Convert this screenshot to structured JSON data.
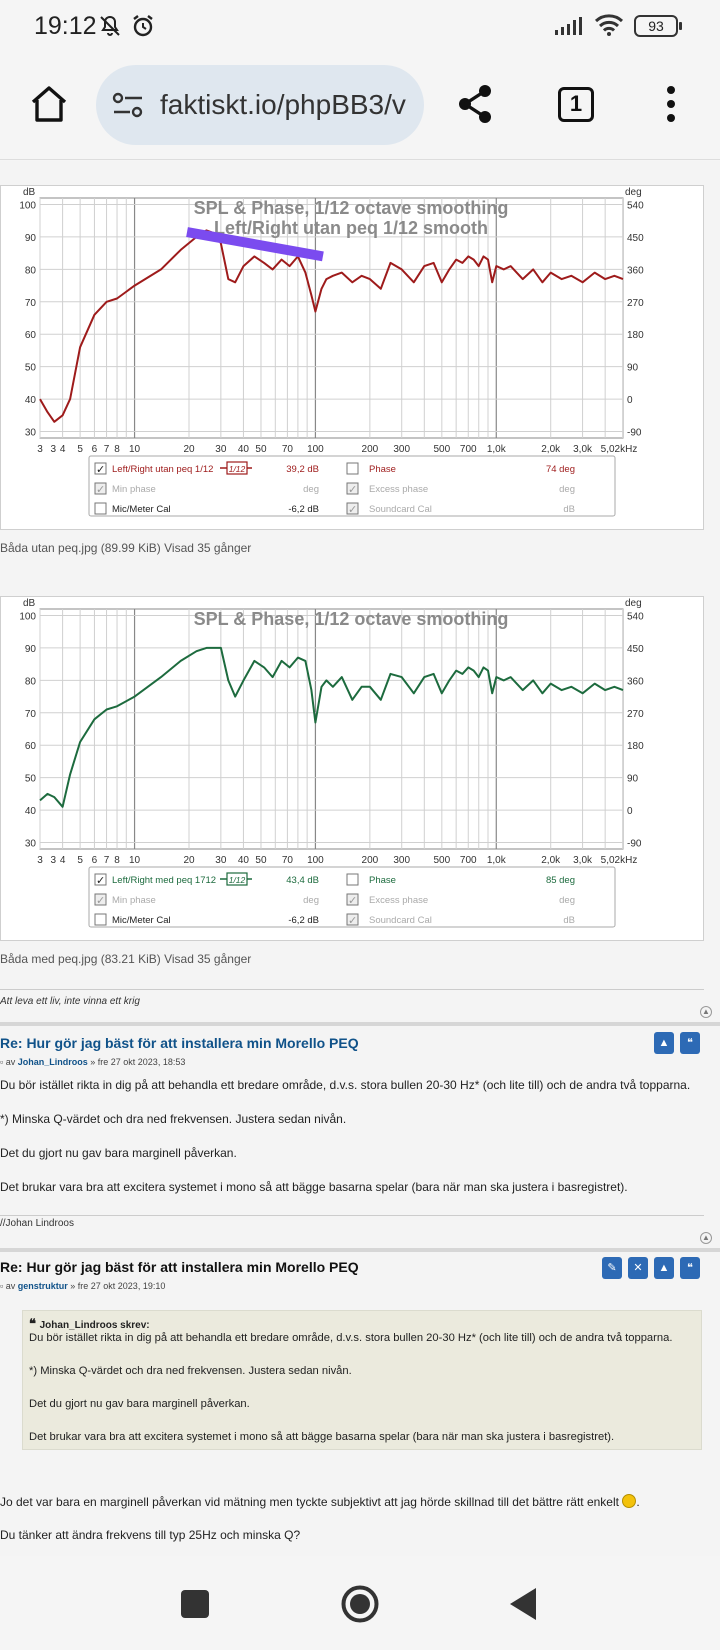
{
  "status": {
    "time": "19:12",
    "battery": "93"
  },
  "browser": {
    "url": "faktiskt.io/phpBB3/v",
    "tab_count": "1"
  },
  "charts": [
    {
      "title": "SPL & Phase, 1/12 octave smoothing",
      "subtitle": "Left/Right utan peq 1/12 smooth",
      "color": "#9e1b1b",
      "legend": {
        "row1_name": "Left/Right utan peq 1/12",
        "row1_val": "39,2 dB",
        "row1_badge": "1/12",
        "row2_name": "Min phase",
        "row2_unit": "deg",
        "row3_name": "Mic/Meter Cal",
        "row3_val": "-6,2 dB",
        "col2_row1_name": "Phase",
        "col2_row1_val": "74 deg",
        "col2_row2_name": "Excess phase",
        "col2_row2_unit": "deg",
        "col2_row3_name": "Soundcard Cal",
        "col2_row3_unit": "dB"
      },
      "caption": "Båda utan peq.jpg (89.99 KiB) Visad 35 gånger"
    },
    {
      "title": "SPL & Phase, 1/12 octave smoothing",
      "subtitle": "",
      "color": "#1d6b3e",
      "legend": {
        "row1_name": "Left/Right med peq 1712",
        "row1_val": "43,4 dB",
        "row1_badge": "1/12",
        "row2_name": "Min phase",
        "row2_unit": "deg",
        "row3_name": "Mic/Meter Cal",
        "row3_val": "-6,2 dB",
        "col2_row1_name": "Phase",
        "col2_row1_val": "85 deg",
        "col2_row2_name": "Excess phase",
        "col2_row2_unit": "deg",
        "col2_row3_name": "Soundcard Cal",
        "col2_row3_unit": "dB"
      },
      "caption": "Båda med peq.jpg (83.21 KiB) Visad 35 gånger"
    }
  ],
  "axes": {
    "y_unit": "dB",
    "y2_unit": "deg",
    "y_ticks": [
      "100",
      "90",
      "80",
      "70",
      "60",
      "50",
      "40",
      "30"
    ],
    "y2_ticks": [
      "540",
      "450",
      "360",
      "270",
      "180",
      "90",
      "0",
      "-90"
    ],
    "x_ticks": [
      {
        "f": 3,
        "label": "3"
      },
      {
        "f": 3.4,
        "label": "3"
      },
      {
        "f": 4,
        "label": "4"
      },
      {
        "f": 5,
        "label": "5"
      },
      {
        "f": 6,
        "label": "6"
      },
      {
        "f": 7,
        "label": "7"
      },
      {
        "f": 8,
        "label": "8"
      },
      {
        "f": 10,
        "label": "10"
      },
      {
        "f": 20,
        "label": "20"
      },
      {
        "f": 30,
        "label": "30"
      },
      {
        "f": 40,
        "label": "40"
      },
      {
        "f": 50,
        "label": "50"
      },
      {
        "f": 70,
        "label": "70"
      },
      {
        "f": 100,
        "label": "100"
      },
      {
        "f": 200,
        "label": "200"
      },
      {
        "f": 300,
        "label": "300"
      },
      {
        "f": 500,
        "label": "500"
      },
      {
        "f": 700,
        "label": "700"
      },
      {
        "f": 1000,
        "label": "1,0k"
      },
      {
        "f": 2000,
        "label": "2,0k"
      },
      {
        "f": 3000,
        "label": "3,0k"
      },
      {
        "f": 5020,
        "label": "5,02kHz"
      }
    ]
  },
  "chart_data": [
    {
      "type": "line",
      "title": "SPL & Phase, 1/12 octave smoothing",
      "subtitle": "Left/Right utan peq 1/12 smooth",
      "xlabel": "",
      "ylabel": "dB",
      "x_scale": "log",
      "xlim": [
        3,
        5020
      ],
      "ylim": [
        28,
        102
      ],
      "series": [
        {
          "name": "Left/Right utan peq 1/12",
          "x": [
            3,
            3.3,
            3.6,
            4,
            4.4,
            5,
            6,
            7,
            8,
            10,
            14,
            18,
            22,
            25,
            28,
            30,
            33,
            36,
            40,
            46,
            52,
            58,
            65,
            72,
            80,
            88,
            95,
            100,
            108,
            115,
            125,
            140,
            160,
            180,
            200,
            230,
            260,
            300,
            350,
            400,
            450,
            500,
            550,
            600,
            650,
            700,
            750,
            800,
            850,
            900,
            950,
            1000,
            1100,
            1200,
            1400,
            1600,
            1800,
            2000,
            2300,
            2600,
            3000,
            3500,
            4000,
            4500,
            5020
          ],
          "values": [
            40,
            36,
            33,
            35,
            40,
            56,
            66,
            70,
            71,
            75,
            80,
            86,
            90,
            92,
            91,
            88,
            77,
            76,
            81,
            84,
            82,
            80,
            83,
            81,
            84,
            79,
            72,
            67,
            74,
            77,
            78,
            79,
            76,
            78,
            77,
            74,
            82,
            80,
            76,
            81,
            82,
            76,
            80,
            83,
            82,
            84,
            83,
            81,
            84,
            83,
            76,
            81,
            80,
            81,
            77,
            80,
            76,
            79,
            77,
            78,
            76,
            79,
            77,
            78,
            77
          ]
        }
      ]
    },
    {
      "type": "line",
      "title": "SPL & Phase, 1/12 octave smoothing",
      "xlabel": "",
      "ylabel": "dB",
      "x_scale": "log",
      "xlim": [
        3,
        5020
      ],
      "ylim": [
        28,
        102
      ],
      "series": [
        {
          "name": "Left/Right med peq 1712",
          "x": [
            3,
            3.3,
            3.6,
            4,
            4.4,
            5,
            6,
            7,
            8,
            10,
            14,
            18,
            22,
            25,
            28,
            30,
            33,
            36,
            40,
            46,
            52,
            58,
            65,
            72,
            80,
            88,
            95,
            100,
            108,
            115,
            125,
            140,
            160,
            180,
            200,
            230,
            260,
            300,
            350,
            400,
            450,
            500,
            550,
            600,
            650,
            700,
            750,
            800,
            850,
            900,
            950,
            1000,
            1100,
            1200,
            1400,
            1600,
            1800,
            2000,
            2300,
            2600,
            3000,
            3500,
            4000,
            4500,
            5020
          ],
          "values": [
            43,
            45,
            44,
            41,
            51,
            61,
            68,
            71,
            72,
            75,
            81,
            86,
            89,
            90,
            90,
            90,
            80,
            75,
            80,
            86,
            84,
            81,
            86,
            84,
            87,
            86,
            77,
            67,
            78,
            80,
            78,
            81,
            74,
            78,
            78,
            74,
            82,
            81,
            76,
            81,
            82,
            76,
            80,
            83,
            82,
            84,
            83,
            81,
            84,
            83,
            76,
            81,
            80,
            81,
            77,
            80,
            76,
            79,
            77,
            78,
            76,
            79,
            77,
            78,
            77
          ]
        }
      ]
    }
  ],
  "posts": [
    {
      "signature": "Att leva ett liv, inte vinna ett krig"
    },
    {
      "title": "Re: Hur gör jag bäst för att installera min Morello PEQ",
      "author": "Johan_Lindroos",
      "meta_pre": "av",
      "date": "» fre 27 okt 2023, 18:53",
      "lines": [
        "Du bör istället rikta in dig på att behandla ett bredare område, d.v.s. stora bullen 20-30 Hz* (och lite till) och de andra två topparna.",
        "*) Minska Q-värdet och dra ned frekvensen. Justera sedan nivån.",
        "Det du gjort nu gav bara marginell påverkan.",
        "Det brukar vara bra att excitera systemet i mono så att bägge basarna spelar (bara när man ska justera i basregistret)."
      ],
      "signature": "//Johan Lindroos"
    },
    {
      "title": "Re: Hur gör jag bäst för att installera min Morello PEQ",
      "author": "genstruktur",
      "meta_pre": "av",
      "date": "» fre 27 okt 2023, 19:10",
      "quote_author": "Johan_Lindroos skrev:",
      "quote_lines": [
        "Du bör istället rikta in dig på att behandla ett bredare område, d.v.s. stora bullen 20-30 Hz* (och lite till) och de andra två topparna.",
        "*) Minska Q-värdet och dra ned frekvensen. Justera sedan nivån.",
        "Det du gjort nu gav bara marginell påverkan.",
        "Det brukar vara bra att excitera systemet i mono så att bägge basarna spelar (bara när man ska justera i basregistret)."
      ],
      "lines": [
        "Jo det var bara en marginell påverkan vid mätning men tyckte subjektivt att jag hörde skillnad till det bättre rätt enkelt",
        "Du tänker att ändra frekvens till typ 25Hz och minska Q?"
      ]
    }
  ],
  "colors": {
    "link": "#105289",
    "button": "#2d6ab5",
    "annotation": "#7b4bef",
    "quote_bg": "#ebeadd"
  }
}
